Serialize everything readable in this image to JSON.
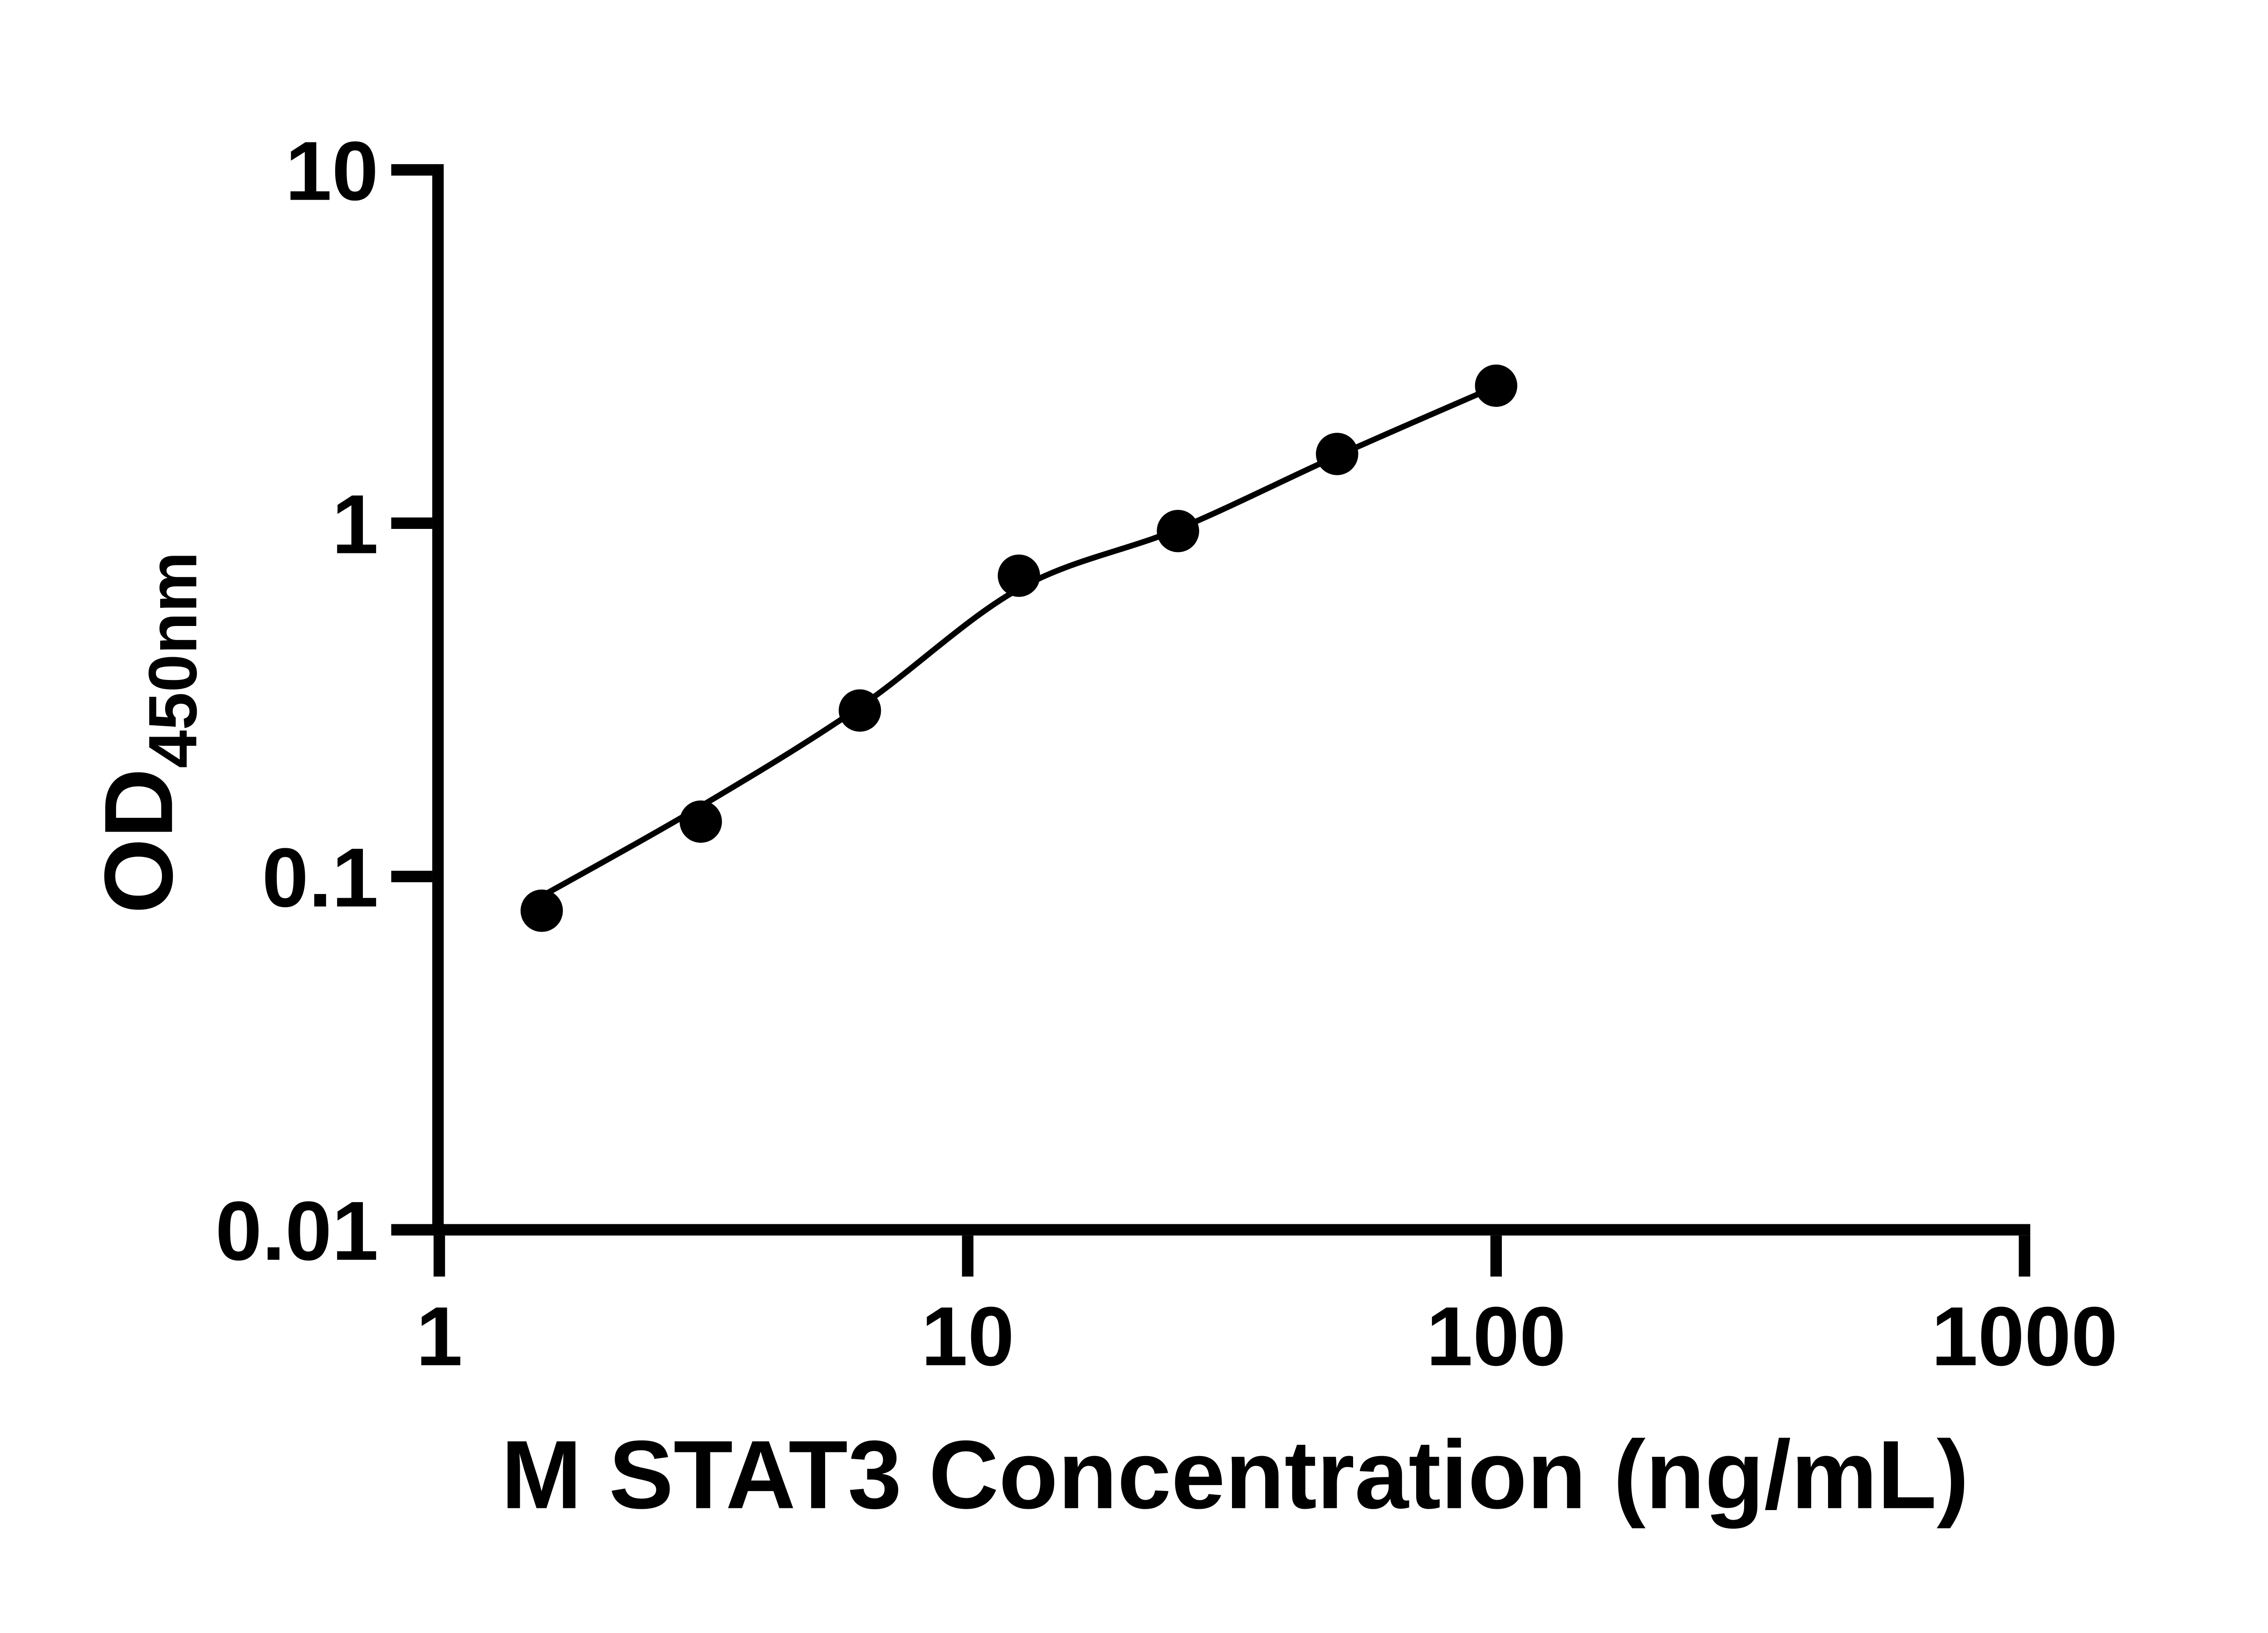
{
  "figure": {
    "background_color": "#ffffff",
    "ink_color": "#000000"
  },
  "chart_data": {
    "type": "scatter",
    "title": "",
    "xlabel": "M STAT3 Concentration (ng/mL)",
    "ylabel_main": "OD",
    "ylabel_sub": "450nm",
    "x_scale": "log10",
    "y_scale": "log10",
    "xlim": [
      1,
      1000
    ],
    "ylim": [
      0.01,
      10
    ],
    "x_ticks": [
      1,
      10,
      100,
      1000
    ],
    "y_ticks": [
      10,
      1,
      0.1,
      0.01
    ],
    "x_tick_labels": [
      "1",
      "10",
      "100",
      "1000"
    ],
    "y_tick_labels": [
      "10",
      "1",
      "0.1",
      "0.01"
    ],
    "grid": false,
    "legend": false,
    "marker": {
      "shape": "filled-circle",
      "color": "#000000",
      "radius_px": 48
    },
    "series": [
      {
        "x": [
          1.5625,
          3.125,
          6.25,
          12.5,
          25,
          50,
          100
        ],
        "y": [
          0.08,
          0.143,
          0.295,
          0.71,
          0.95,
          1.57,
          2.45
        ]
      }
    ],
    "trend_line": {
      "x": [
        1.5,
        3.125,
        6.25,
        12.5,
        25,
        50,
        100
      ],
      "y": [
        0.085,
        0.158,
        0.302,
        0.652,
        0.962,
        1.55,
        2.44
      ]
    }
  }
}
